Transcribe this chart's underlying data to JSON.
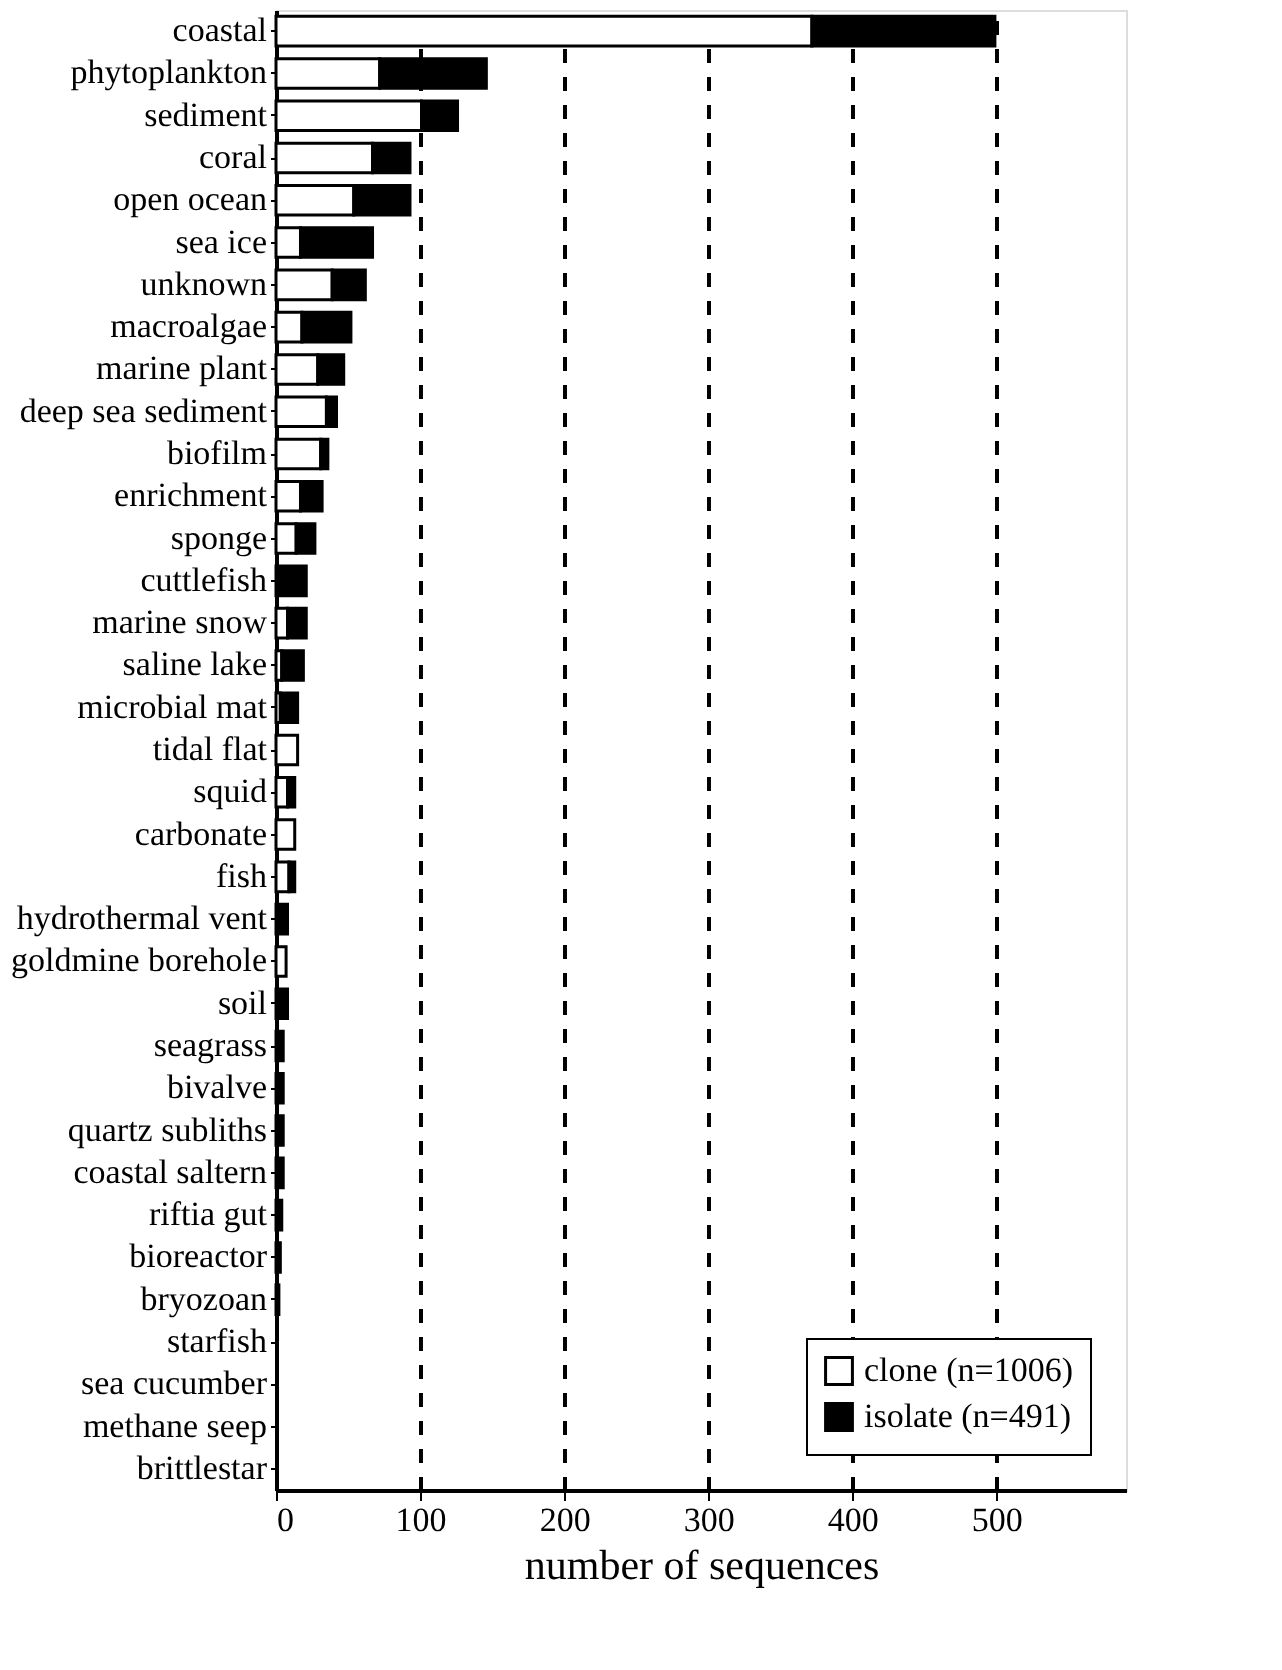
{
  "chart_data": {
    "type": "bar",
    "orientation": "horizontal",
    "stacked": true,
    "xlabel": "number of sequences",
    "categories": [
      "coastal",
      "phytoplankton",
      "sediment",
      "coral",
      "open ocean",
      "sea ice",
      "unknown",
      "macroalgae",
      "marine plant",
      "deep sea sediment",
      "biofilm",
      "enrichment",
      "sponge",
      "cuttlefish",
      "marine snow",
      "saline lake",
      "microbial mat",
      "tidal flat",
      "squid",
      "carbonate",
      "fish",
      "hydrothermal vent",
      "goldmine borehole",
      "soil",
      "seagrass",
      "bivalve",
      "quartz subliths",
      "coastal saltern",
      "riftia gut",
      "bioreactor",
      "bryozoan",
      "starfish",
      "sea cucumber",
      "methane seep",
      "brittlestar"
    ],
    "series": [
      {
        "name": "clone (n=1006)",
        "color": "#ffffff",
        "values": [
          372,
          72,
          101,
          67,
          54,
          17,
          39,
          18,
          29,
          35,
          31,
          17,
          14,
          0,
          8,
          4,
          3,
          15,
          8,
          13,
          9,
          0,
          7,
          0,
          0,
          0,
          0,
          0,
          0,
          0,
          0,
          0,
          0,
          0,
          0
        ]
      },
      {
        "name": "isolate (n=491)",
        "color": "#000000",
        "values": [
          127,
          74,
          25,
          26,
          39,
          50,
          23,
          34,
          18,
          7,
          5,
          15,
          13,
          21,
          13,
          15,
          12,
          0,
          5,
          0,
          4,
          8,
          0,
          8,
          5,
          5,
          5,
          5,
          4,
          3,
          2,
          null,
          null,
          null,
          null
        ]
      }
    ],
    "xlim": [
      0,
      590
    ],
    "xticks": [
      0,
      100,
      200,
      300,
      400,
      500
    ],
    "grid": "x",
    "legend": "bottom right"
  }
}
